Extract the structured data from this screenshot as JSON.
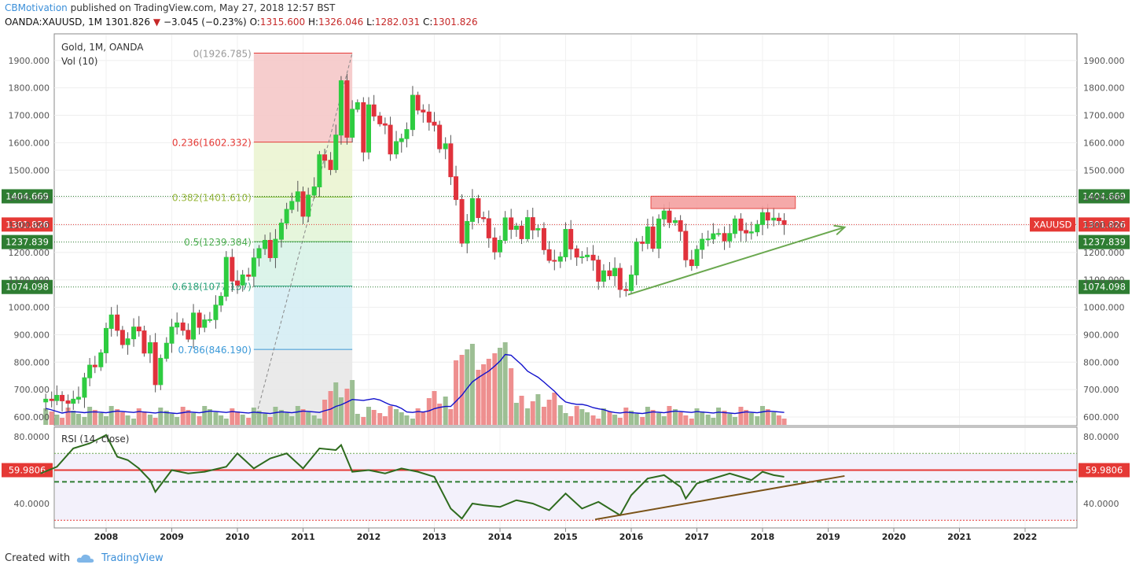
{
  "header": {
    "author": "CBMotivation",
    "published": "published on TradingView.com, May 27, 2018 12:57 BST",
    "symbol": "OANDA:XAUUSD",
    "timeframe": "1M",
    "last": "1301.826",
    "change": "−3.045 (−0.23%)",
    "open_label": "O:",
    "open": "1315.600",
    "high_label": "H:",
    "high": "1326.046",
    "low_label": "L:",
    "low": "1282.031",
    "close_label": "C:",
    "close": "1301.826"
  },
  "footer": {
    "created_with": "Created with",
    "brand": "TradingView"
  },
  "colors": {
    "up": "#2ecc40",
    "down": "#e0323c",
    "vol_up": "#9dbf94",
    "vol_down": "#ee8f8f",
    "ma": "#1010cc",
    "rsi": "#2e6b1e",
    "green_arrow": "#6aa84f",
    "brown_line": "#7a5218",
    "accent": "#3b8fd9"
  },
  "chart_data": [
    {
      "type": "candlestick",
      "title": "Gold, 1M, OANDA",
      "indicator_label": "Vol (10)",
      "y_ticks": [
        600,
        700,
        800,
        900,
        1000,
        1100,
        1200,
        1300,
        1400,
        1500,
        1600,
        1700,
        1800,
        1900
      ],
      "y_tick_labels": [
        "600.000",
        "700.000",
        "800.000",
        "900.000",
        "1000.000",
        "1100.000",
        "1200.000",
        "1300.000",
        "1400.000",
        "1500.000",
        "1600.000",
        "1700.000",
        "1800.000",
        "1900.000"
      ],
      "x_labels": [
        "2008",
        "2009",
        "2010",
        "2011",
        "2012",
        "2013",
        "2014",
        "2015",
        "2016",
        "2017",
        "2018",
        "2019",
        "2020",
        "2021",
        "2022"
      ],
      "series_close": [
        [
          2007.0,
          655
        ],
        [
          2007.08,
          665
        ],
        [
          2007.17,
          660
        ],
        [
          2007.25,
          679
        ],
        [
          2007.33,
          659
        ],
        [
          2007.42,
          650
        ],
        [
          2007.5,
          665
        ],
        [
          2007.58,
          672
        ],
        [
          2007.67,
          743
        ],
        [
          2007.75,
          789
        ],
        [
          2007.83,
          783
        ],
        [
          2007.92,
          834
        ],
        [
          2008.0,
          923
        ],
        [
          2008.08,
          972
        ],
        [
          2008.17,
          916
        ],
        [
          2008.25,
          864
        ],
        [
          2008.33,
          885
        ],
        [
          2008.42,
          928
        ],
        [
          2008.5,
          914
        ],
        [
          2008.58,
          833
        ],
        [
          2008.67,
          871
        ],
        [
          2008.75,
          718
        ],
        [
          2008.83,
          814
        ],
        [
          2008.92,
          869
        ],
        [
          2009.0,
          928
        ],
        [
          2009.08,
          943
        ],
        [
          2009.17,
          916
        ],
        [
          2009.25,
          884
        ],
        [
          2009.33,
          979
        ],
        [
          2009.42,
          927
        ],
        [
          2009.5,
          954
        ],
        [
          2009.58,
          955
        ],
        [
          2009.67,
          1008
        ],
        [
          2009.75,
          1040
        ],
        [
          2009.83,
          1182
        ],
        [
          2009.92,
          1096
        ],
        [
          2010.0,
          1081
        ],
        [
          2010.08,
          1118
        ],
        [
          2010.17,
          1113
        ],
        [
          2010.25,
          1180
        ],
        [
          2010.33,
          1214
        ],
        [
          2010.42,
          1244
        ],
        [
          2010.5,
          1181
        ],
        [
          2010.58,
          1248
        ],
        [
          2010.67,
          1307
        ],
        [
          2010.75,
          1357
        ],
        [
          2010.83,
          1386
        ],
        [
          2010.92,
          1421
        ],
        [
          2011.0,
          1332
        ],
        [
          2011.08,
          1409
        ],
        [
          2011.17,
          1439
        ],
        [
          2011.25,
          1556
        ],
        [
          2011.33,
          1536
        ],
        [
          2011.42,
          1502
        ],
        [
          2011.5,
          1628
        ],
        [
          2011.58,
          1826
        ],
        [
          2011.67,
          1620
        ],
        [
          2011.75,
          1722
        ],
        [
          2011.83,
          1746
        ],
        [
          2011.92,
          1566
        ],
        [
          2012.0,
          1738
        ],
        [
          2012.08,
          1697
        ],
        [
          2012.17,
          1669
        ],
        [
          2012.25,
          1664
        ],
        [
          2012.33,
          1559
        ],
        [
          2012.42,
          1604
        ],
        [
          2012.5,
          1615
        ],
        [
          2012.58,
          1648
        ],
        [
          2012.67,
          1773
        ],
        [
          2012.75,
          1719
        ],
        [
          2012.83,
          1712
        ],
        [
          2012.92,
          1675
        ],
        [
          2013.0,
          1664
        ],
        [
          2013.08,
          1578
        ],
        [
          2013.17,
          1596
        ],
        [
          2013.25,
          1476
        ],
        [
          2013.33,
          1393
        ],
        [
          2013.42,
          1234
        ],
        [
          2013.5,
          1313
        ],
        [
          2013.58,
          1396
        ],
        [
          2013.67,
          1327
        ],
        [
          2013.75,
          1323
        ],
        [
          2013.83,
          1253
        ],
        [
          2013.92,
          1202
        ],
        [
          2014.0,
          1244
        ],
        [
          2014.08,
          1326
        ],
        [
          2014.17,
          1284
        ],
        [
          2014.25,
          1296
        ],
        [
          2014.33,
          1250
        ],
        [
          2014.42,
          1327
        ],
        [
          2014.5,
          1282
        ],
        [
          2014.58,
          1287
        ],
        [
          2014.67,
          1210
        ],
        [
          2014.75,
          1171
        ],
        [
          2014.83,
          1168
        ],
        [
          2014.92,
          1184
        ],
        [
          2015.0,
          1284
        ],
        [
          2015.08,
          1213
        ],
        [
          2015.17,
          1183
        ],
        [
          2015.25,
          1184
        ],
        [
          2015.33,
          1190
        ],
        [
          2015.42,
          1172
        ],
        [
          2015.5,
          1095
        ],
        [
          2015.58,
          1133
        ],
        [
          2015.67,
          1115
        ],
        [
          2015.75,
          1142
        ],
        [
          2015.83,
          1065
        ],
        [
          2015.92,
          1061
        ],
        [
          2016.0,
          1118
        ],
        [
          2016.08,
          1238
        ],
        [
          2016.17,
          1233
        ],
        [
          2016.25,
          1293
        ],
        [
          2016.33,
          1215
        ],
        [
          2016.42,
          1322
        ],
        [
          2016.5,
          1351
        ],
        [
          2016.58,
          1309
        ],
        [
          2016.67,
          1316
        ],
        [
          2016.75,
          1277
        ],
        [
          2016.83,
          1173
        ],
        [
          2016.92,
          1152
        ],
        [
          2017.0,
          1211
        ],
        [
          2017.08,
          1248
        ],
        [
          2017.17,
          1249
        ],
        [
          2017.25,
          1268
        ],
        [
          2017.33,
          1269
        ],
        [
          2017.42,
          1242
        ],
        [
          2017.5,
          1269
        ],
        [
          2017.58,
          1322
        ],
        [
          2017.67,
          1280
        ],
        [
          2017.75,
          1271
        ],
        [
          2017.83,
          1275
        ],
        [
          2017.92,
          1302
        ],
        [
          2018.0,
          1345
        ],
        [
          2018.08,
          1318
        ],
        [
          2018.17,
          1325
        ],
        [
          2018.25,
          1316
        ],
        [
          2018.33,
          1302
        ]
      ],
      "annotations": {
        "fib_levels": [
          {
            "ratio": "0",
            "value": 1926.785,
            "label": "0(1926.785)"
          },
          {
            "ratio": "0.236",
            "value": 1602.332,
            "label": "0.236(1602.332)"
          },
          {
            "ratio": "0.382",
            "value": 1401.61,
            "label": "0.382(1401.610)"
          },
          {
            "ratio": "0.5",
            "value": 1239.384,
            "label": "0.5(1239.384)"
          },
          {
            "ratio": "0.618",
            "value": 1077.157,
            "label": "0.618(1077.157)"
          },
          {
            "ratio": "0.786",
            "value": 846.19,
            "label": "0.786(846.190)"
          }
        ],
        "horizontal_levels": [
          {
            "value": 1404.669,
            "label": "1404.669",
            "color": "#2e7d32"
          },
          {
            "value": 1301.826,
            "label": "1301.826",
            "color": "#e53935"
          },
          {
            "value": 1237.839,
            "label": "1237.839",
            "color": "#2e7d32"
          },
          {
            "value": 1074.098,
            "label": "1074.098",
            "color": "#2e7d32"
          }
        ],
        "symbol_badge": "XAUUSD",
        "resistance_zone": {
          "from": 1360,
          "to": 1405,
          "x_start": 2016.3,
          "x_end": 2018.5
        },
        "uptrend_arrow": {
          "from": [
            2015.95,
            1046
          ],
          "to": [
            2019.25,
            1292
          ]
        }
      }
    },
    {
      "type": "line",
      "title": "RSI (14, close)",
      "y_ticks": [
        40,
        80
      ],
      "y_tick_labels": [
        "40.0000",
        "80.0000"
      ],
      "upper_band": 70,
      "lower_band": 30,
      "levels": [
        {
          "value": 59.9806,
          "label": "59.9806"
        }
      ],
      "x": [
        2007.0,
        2007.25,
        2007.5,
        2007.75,
        2008.0,
        2008.17,
        2008.33,
        2008.5,
        2008.67,
        2008.75,
        2009.0,
        2009.25,
        2009.5,
        2009.83,
        2010.0,
        2010.25,
        2010.5,
        2010.75,
        2011.0,
        2011.25,
        2011.5,
        2011.58,
        2011.75,
        2012.0,
        2012.25,
        2012.5,
        2012.75,
        2013.0,
        2013.25,
        2013.42,
        2013.58,
        2013.75,
        2014.0,
        2014.25,
        2014.5,
        2014.75,
        2015.0,
        2015.25,
        2015.5,
        2015.83,
        2016.0,
        2016.25,
        2016.5,
        2016.75,
        2016.83,
        2017.0,
        2017.25,
        2017.5,
        2017.67,
        2017.83,
        2018.0,
        2018.17,
        2018.33
      ],
      "values": [
        58,
        62,
        73,
        76,
        81,
        68,
        66,
        61,
        54,
        47,
        60,
        58,
        59,
        62,
        70,
        61,
        67,
        70,
        61,
        73,
        72,
        75,
        59,
        60,
        58,
        61,
        59,
        56,
        37,
        31,
        40,
        39,
        38,
        42,
        40,
        36,
        46,
        37,
        41,
        33,
        45,
        55,
        57,
        50,
        43,
        52,
        55,
        58,
        56,
        54,
        59,
        57,
        56
      ]
    }
  ]
}
